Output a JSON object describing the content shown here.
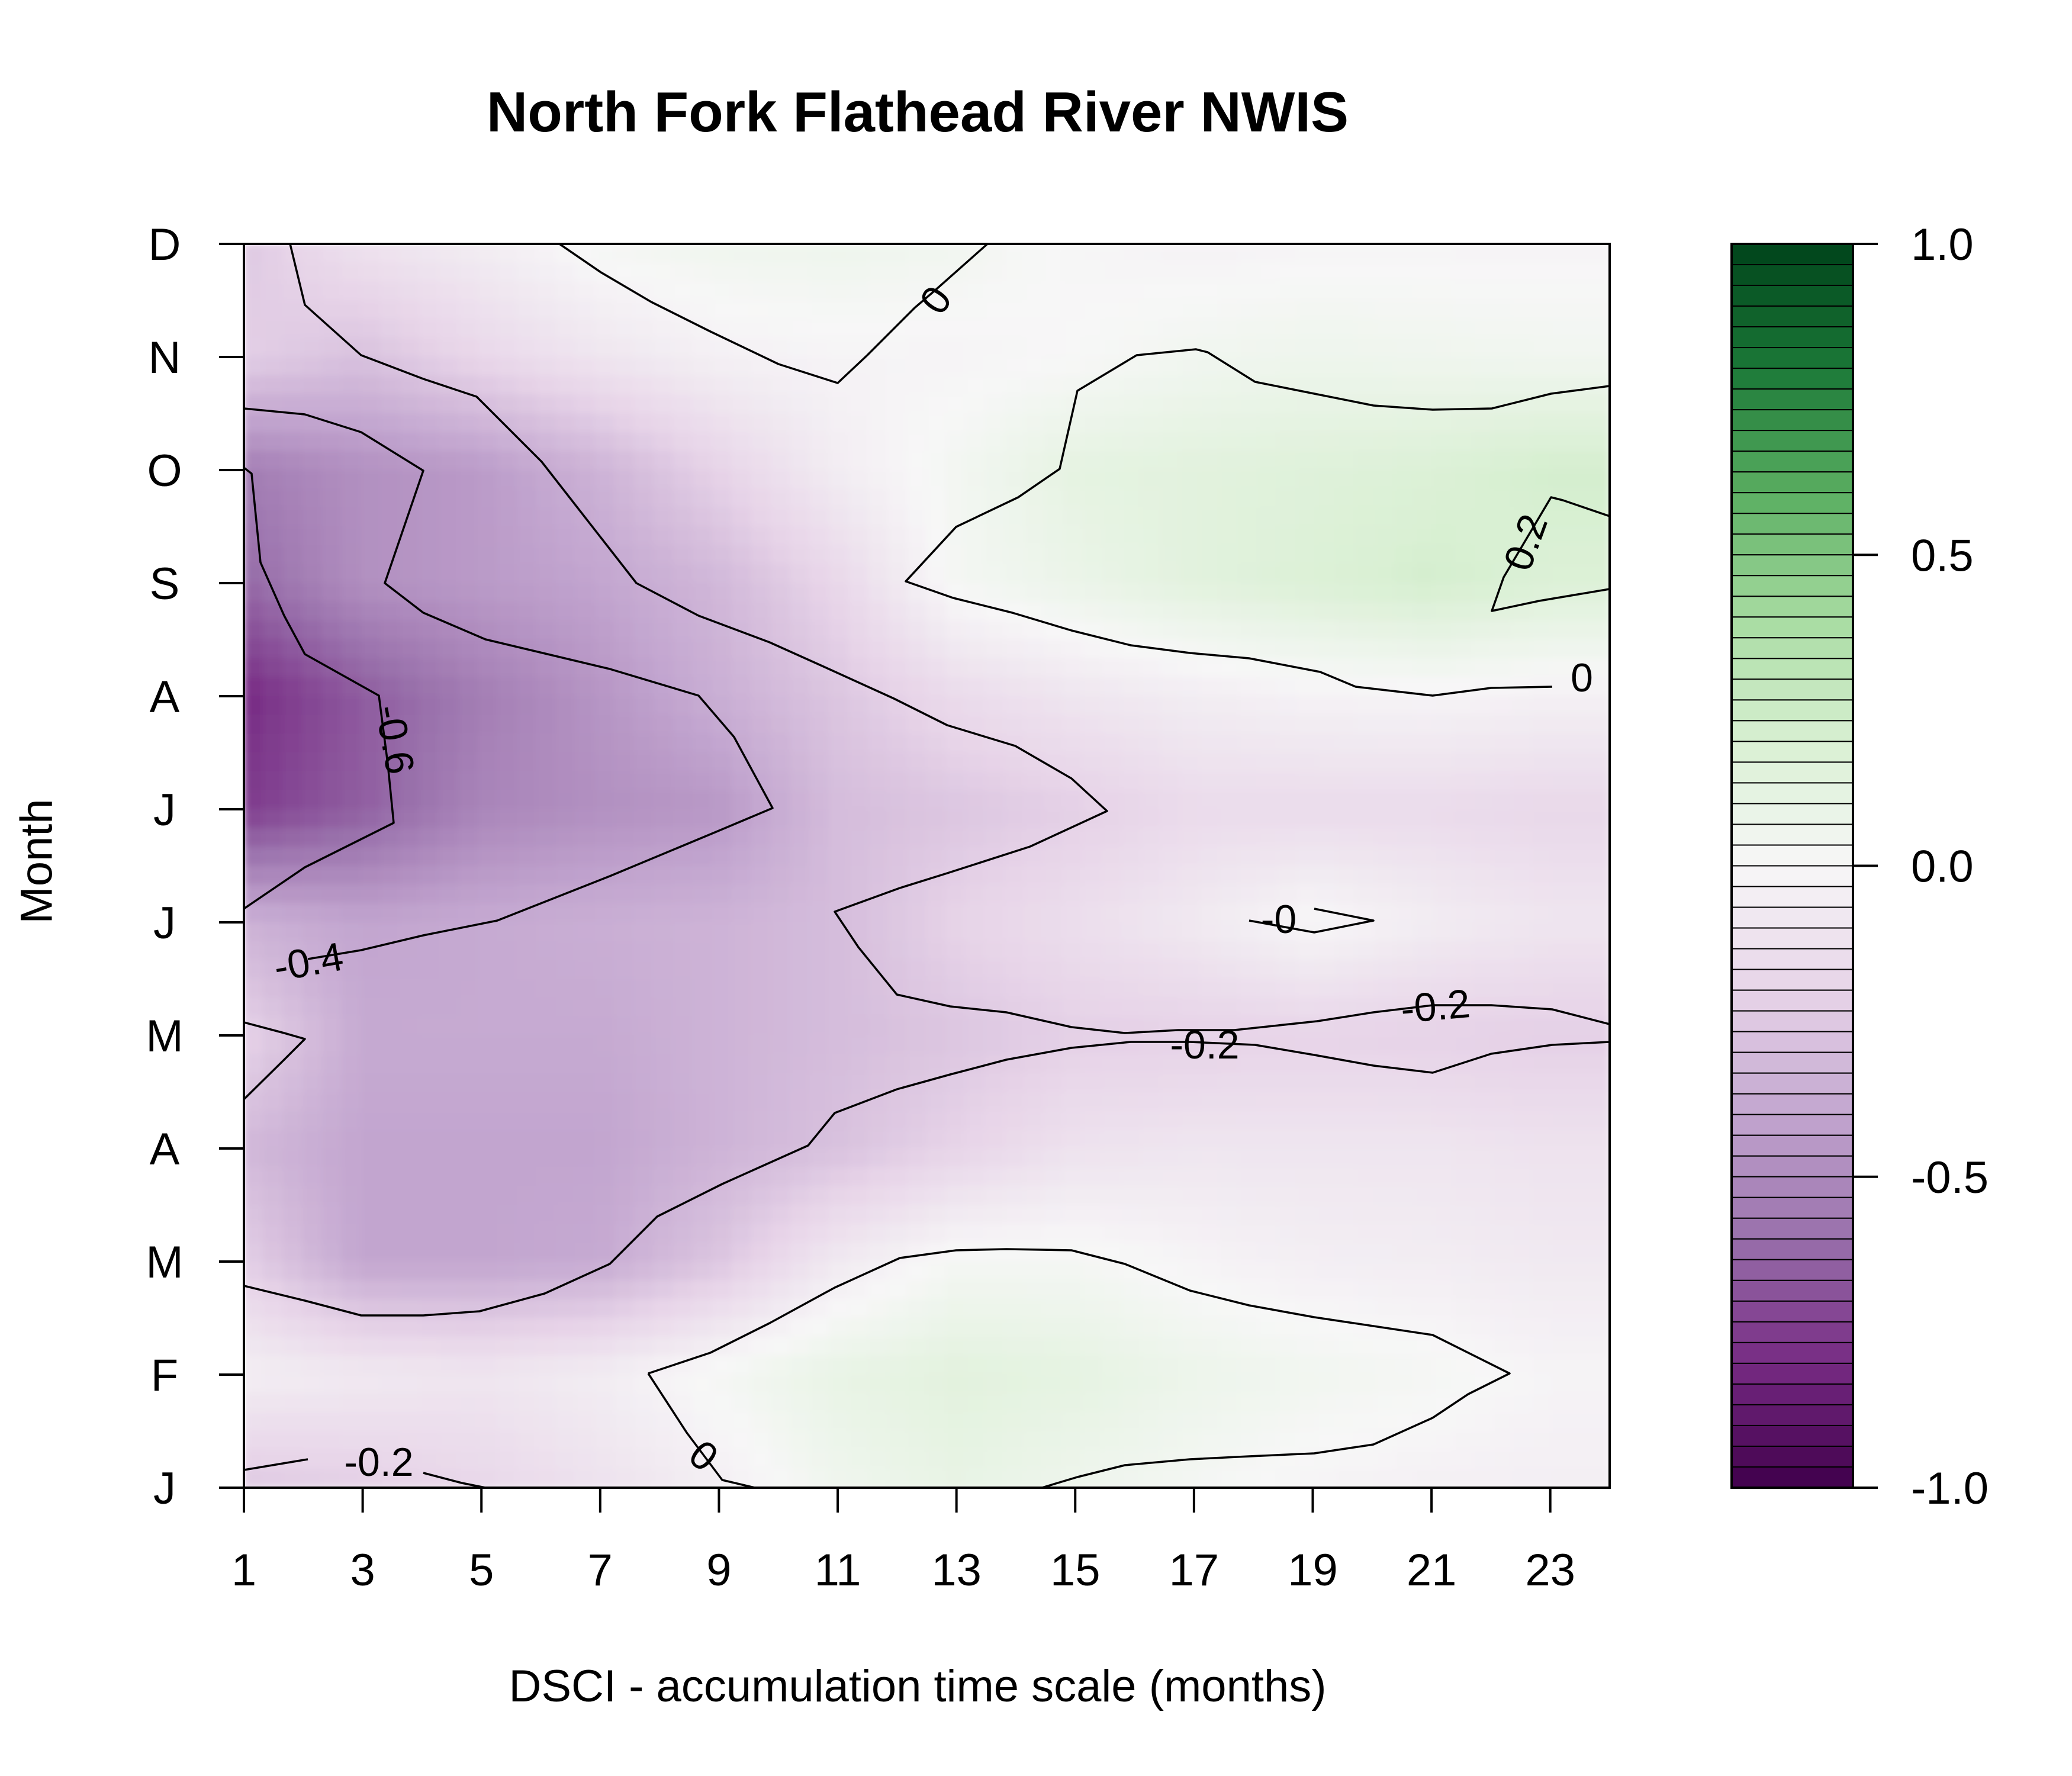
{
  "chart_data": {
    "type": "heatmap",
    "subtype": "filled contour",
    "title": "North Fork Flathead River NWIS",
    "xlabel": "DSCI - accumulation time scale (months)",
    "ylabel": "Month",
    "x": [
      1,
      3,
      5,
      7,
      9,
      11,
      13,
      15,
      17,
      19,
      21,
      23
    ],
    "x_tick_labels": [
      "1",
      "3",
      "5",
      "7",
      "9",
      "11",
      "13",
      "15",
      "17",
      "19",
      "21",
      "23"
    ],
    "xlim": [
      1,
      24
    ],
    "y_tick_labels": [
      "J",
      "F",
      "M",
      "A",
      "M",
      "J",
      "J",
      "A",
      "S",
      "O",
      "N",
      "D"
    ],
    "ylim": [
      1,
      12
    ],
    "z": [
      [
        -0.25,
        -0.22,
        -0.18,
        -0.12,
        -0.05,
        0.05,
        0.1,
        0.06,
        0.02,
        -0.02,
        -0.04,
        -0.05
      ],
      [
        -0.05,
        -0.08,
        -0.1,
        -0.06,
        0.02,
        0.1,
        0.14,
        0.12,
        0.07,
        0.04,
        0.02,
        -0.02
      ],
      [
        -0.22,
        -0.4,
        -0.4,
        -0.38,
        -0.26,
        -0.08,
        0.02,
        0.02,
        -0.02,
        -0.05,
        -0.06,
        -0.08
      ],
      [
        -0.32,
        -0.4,
        -0.4,
        -0.4,
        -0.34,
        -0.28,
        -0.2,
        -0.12,
        -0.1,
        -0.1,
        -0.1,
        -0.12
      ],
      [
        -0.2,
        -0.38,
        -0.38,
        -0.38,
        -0.34,
        -0.3,
        -0.26,
        -0.22,
        -0.21,
        -0.2,
        -0.21,
        -0.22
      ],
      [
        -0.35,
        -0.4,
        -0.38,
        -0.36,
        -0.34,
        -0.3,
        -0.2,
        -0.14,
        -0.08,
        0.0,
        -0.06,
        -0.1
      ],
      [
        -0.75,
        -0.65,
        -0.52,
        -0.48,
        -0.45,
        -0.3,
        -0.26,
        -0.22,
        -0.16,
        -0.16,
        -0.16,
        -0.18
      ],
      [
        -0.8,
        -0.66,
        -0.55,
        -0.46,
        -0.36,
        -0.26,
        -0.16,
        -0.1,
        -0.06,
        -0.03,
        -0.02,
        -0.04
      ],
      [
        -0.62,
        -0.48,
        -0.44,
        -0.4,
        -0.32,
        -0.18,
        0.02,
        0.08,
        0.14,
        0.18,
        0.22,
        0.18
      ],
      [
        -0.55,
        -0.48,
        -0.44,
        -0.34,
        -0.2,
        -0.06,
        0.03,
        0.12,
        0.14,
        0.16,
        0.18,
        0.22
      ],
      [
        -0.22,
        -0.28,
        -0.18,
        -0.1,
        -0.04,
        -0.02,
        -0.02,
        0.0,
        0.04,
        0.06,
        0.05,
        0.04
      ],
      [
        -0.25,
        -0.12,
        -0.06,
        0.02,
        0.05,
        0.06,
        0.04,
        -0.01,
        -0.03,
        -0.02,
        -0.02,
        -0.02
      ]
    ],
    "contour_levels": [
      "-0.6",
      "-0.4",
      "-0.2",
      "0",
      "0.2"
    ],
    "contour_labels": [
      "-0.2",
      "0",
      "-0.4",
      "-0.2",
      "-0.2",
      "-0",
      "-0.6",
      "0",
      "0.2",
      "0"
    ],
    "colorbar": {
      "range": [
        -1.0,
        1.0
      ],
      "tick_labels": [
        "1.0",
        "0.5",
        "0.0",
        "-0.5",
        "-1.0"
      ],
      "colors": [
        "#40004b",
        "#762a83",
        "#9970ab",
        "#c2a5cf",
        "#e7d4e8",
        "#f7f7f7",
        "#d9f0d3",
        "#a6dba0",
        "#5aae61",
        "#1b7837",
        "#00441b"
      ]
    },
    "grid": false,
    "legend": "colorbar right"
  }
}
